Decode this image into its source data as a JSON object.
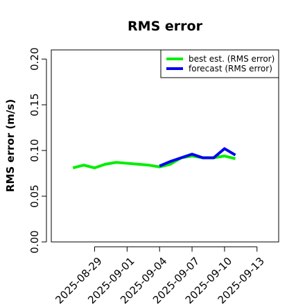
{
  "chart_data": {
    "type": "line",
    "title": "RMS error",
    "xlabel": "",
    "ylabel": "RMS error (m/s)",
    "ylim": [
      0.0,
      0.21
    ],
    "xlim": [
      "2025-08-25",
      "2025-09-15"
    ],
    "y_ticks": [
      "0.00",
      "0.05",
      "0.10",
      "0.15",
      "0.20"
    ],
    "y_tick_values": [
      0.0,
      0.05,
      0.1,
      0.15,
      0.2
    ],
    "x_ticks": [
      "2025-08-29",
      "2025-09-01",
      "2025-09-04",
      "2025-09-07",
      "2025-09-10",
      "2025-09-13"
    ],
    "highlighted_x_tick": "2025-09-04",
    "highlight_color": "#228B22",
    "grid": false,
    "legend_position": "top-right",
    "series": [
      {
        "name": "best est. (RMS error)",
        "color": "#00ee00",
        "x": [
          "2025-08-27",
          "2025-08-28",
          "2025-08-29",
          "2025-08-30",
          "2025-08-31",
          "2025-09-01",
          "2025-09-02",
          "2025-09-03",
          "2025-09-04",
          "2025-09-05",
          "2025-09-06",
          "2025-09-07",
          "2025-09-08",
          "2025-09-09",
          "2025-09-10",
          "2025-09-11"
        ],
        "values": [
          0.081,
          0.084,
          0.081,
          0.085,
          0.087,
          0.086,
          0.085,
          0.084,
          0.082,
          0.085,
          0.092,
          0.094,
          0.092,
          0.092,
          0.094,
          0.091
        ]
      },
      {
        "name": "forecast (RMS error)",
        "color": "#0000ee",
        "x": [
          "2025-09-04",
          "2025-09-05",
          "2025-09-06",
          "2025-09-07",
          "2025-09-08",
          "2025-09-09",
          "2025-09-10",
          "2025-09-11"
        ],
        "values": [
          0.083,
          0.088,
          0.092,
          0.096,
          0.092,
          0.092,
          0.102,
          0.095
        ]
      }
    ]
  }
}
